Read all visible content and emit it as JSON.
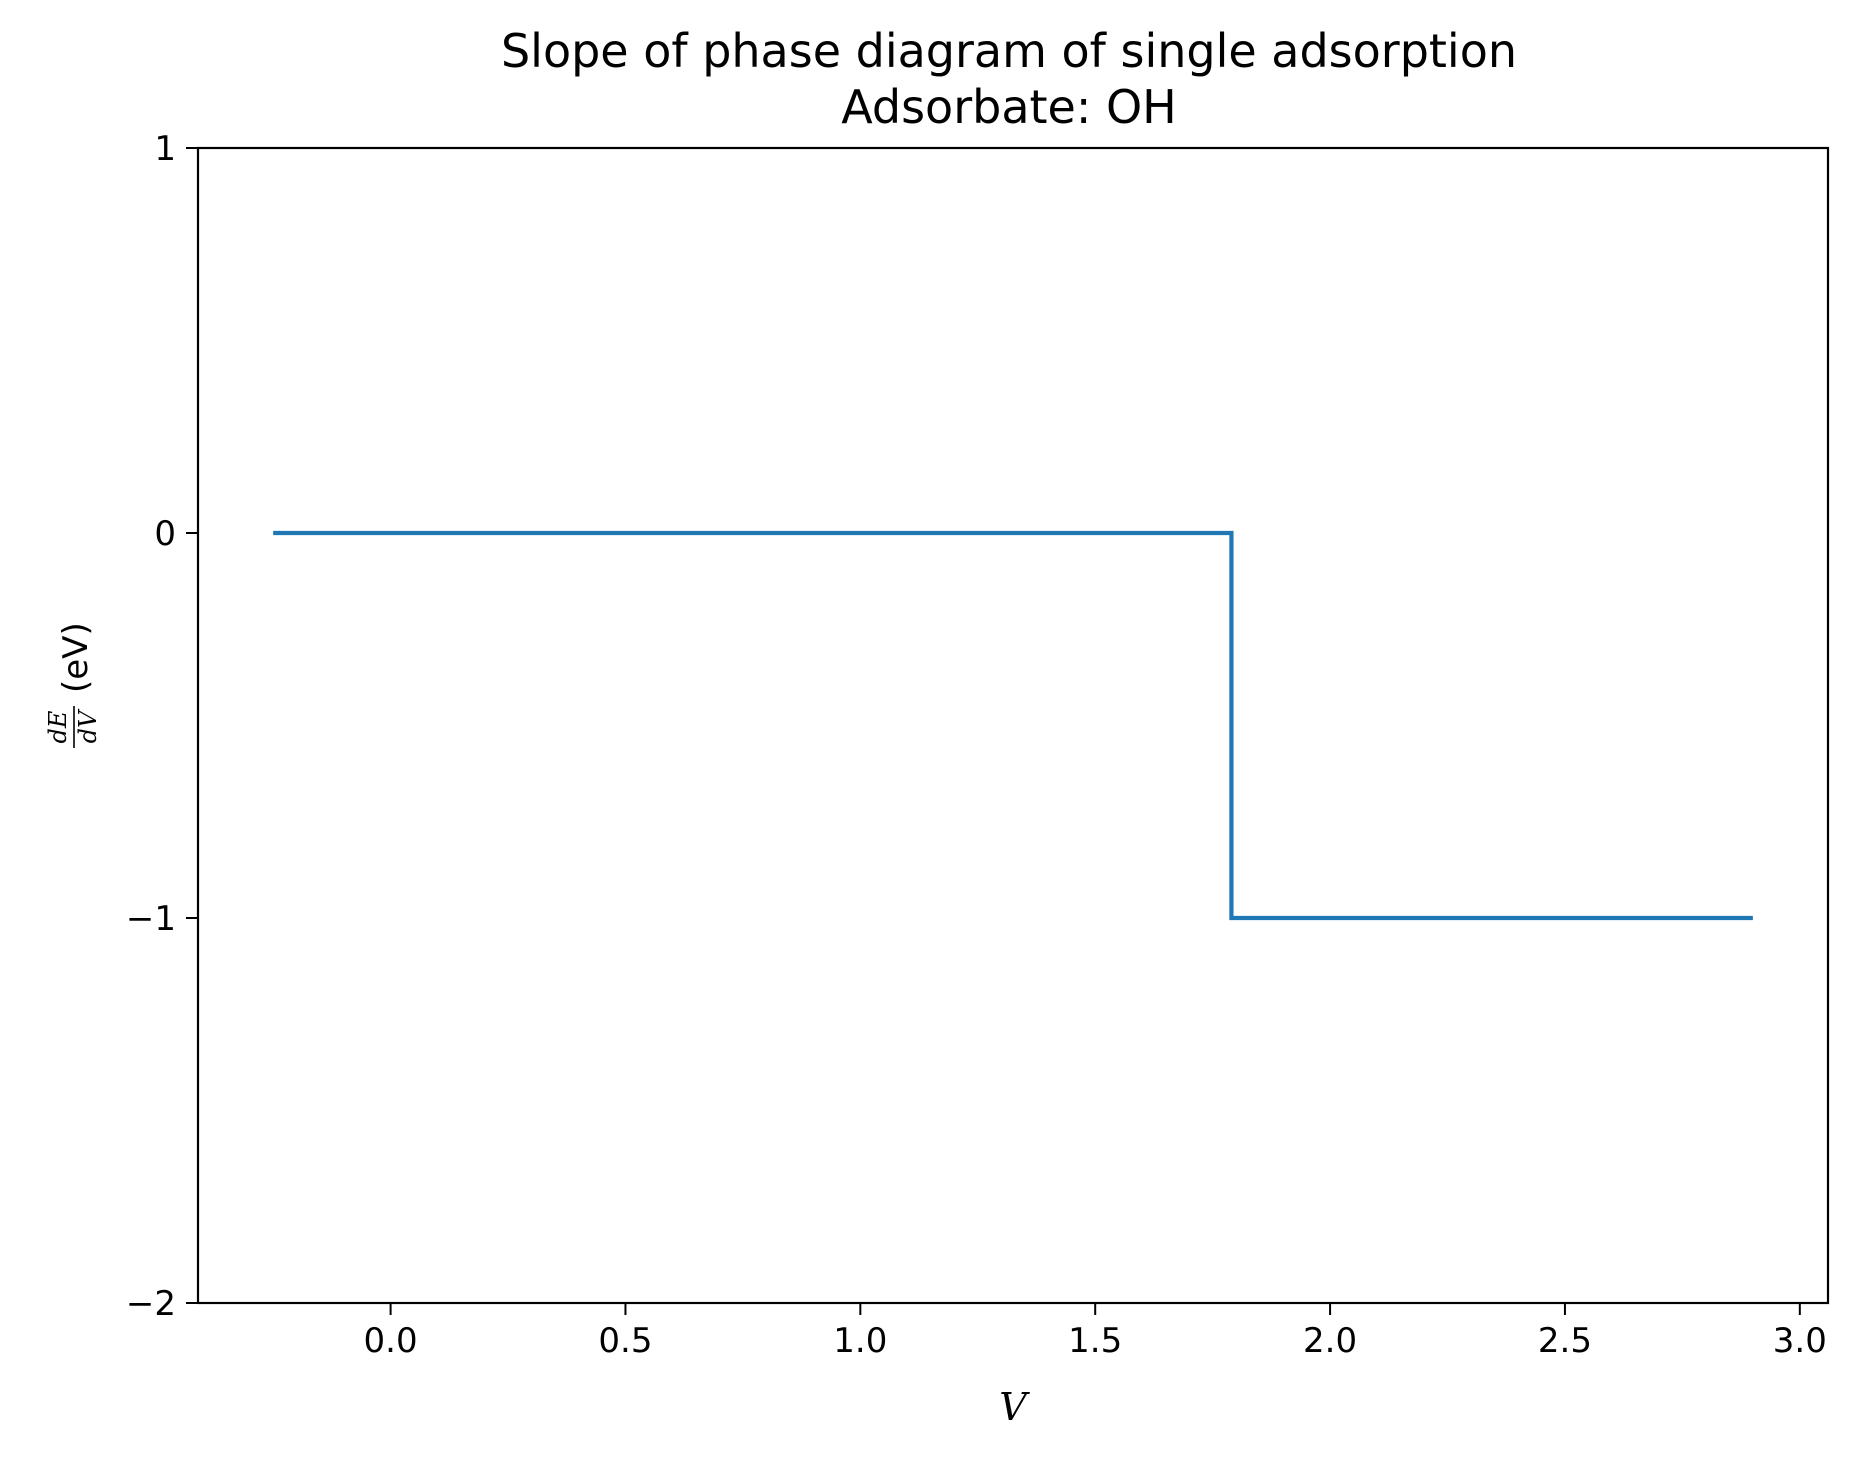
{
  "chart_data": {
    "type": "line",
    "title": "Slope of phase diagram of single adsorption",
    "subtitle": "Adsorbate: OH",
    "xlabel": "V",
    "ylabel": {
      "numerator": "dE",
      "denominator": "dV",
      "unit": "(eV)"
    },
    "xlim": [
      -0.41,
      3.06
    ],
    "ylim": [
      -2,
      1
    ],
    "xticks": [
      0.0,
      0.5,
      1.0,
      1.5,
      2.0,
      2.5,
      3.0
    ],
    "xtick_labels": [
      "0.0",
      "0.5",
      "1.0",
      "1.5",
      "2.0",
      "2.5",
      "3.0"
    ],
    "yticks": [
      1,
      0,
      -1,
      -2
    ],
    "ytick_labels": [
      "1",
      "0",
      "−1",
      "−2"
    ],
    "grid": false,
    "series": [
      {
        "color": "#1f77b4",
        "x": [
          -0.25,
          1.79,
          1.79,
          2.9
        ],
        "y": [
          0,
          0,
          -1,
          -1
        ]
      }
    ]
  }
}
